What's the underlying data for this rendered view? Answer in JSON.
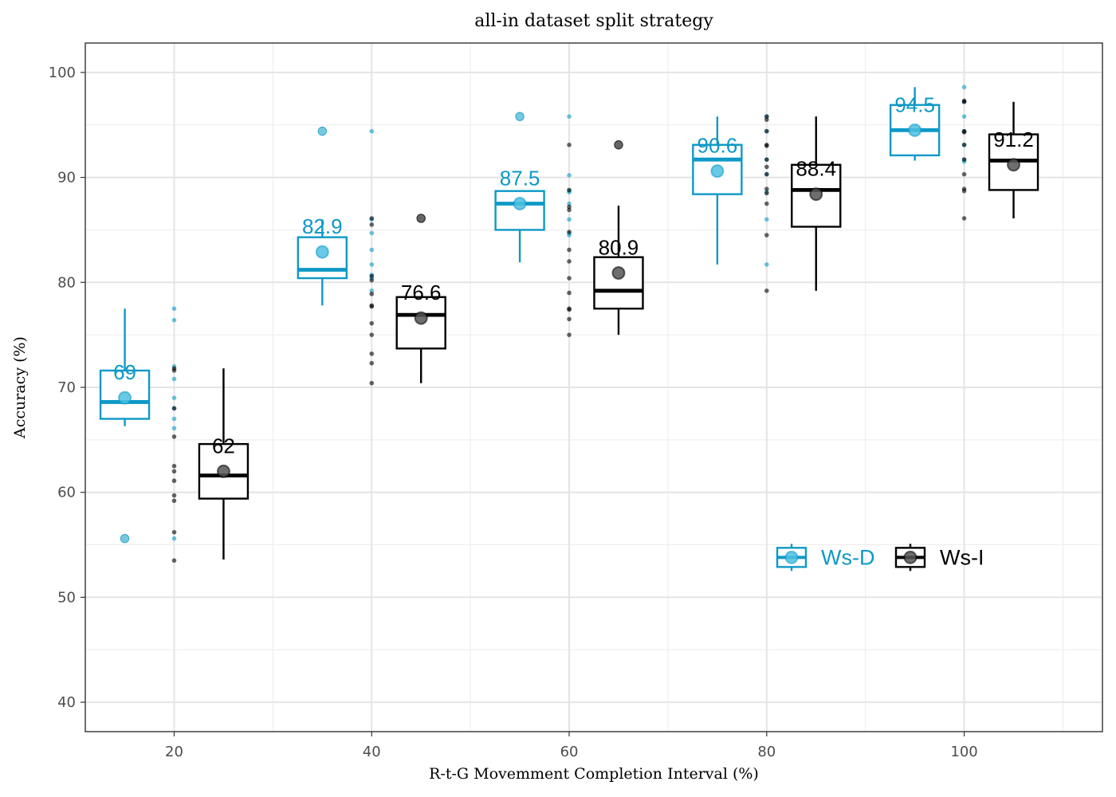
{
  "chart_data": {
    "type": "boxplot",
    "title": "all-in dataset split strategy",
    "xlabel": "R-t-G Movemment Completion Interval (%)",
    "ylabel": "Accuracy (%)",
    "xlim": [
      11,
      114
    ],
    "ylim": [
      37.2,
      102.8
    ],
    "x_ticks": [
      20,
      40,
      60,
      80,
      100
    ],
    "y_ticks": [
      40,
      50,
      60,
      70,
      80,
      90,
      100
    ],
    "grid": true,
    "legend_position": "inside-bottom-right",
    "series": [
      {
        "name": "Ws-D",
        "color": "#0d99c6",
        "boxes": [
          {
            "x": 15,
            "whisker_low": 66.3,
            "q1": 67.0,
            "median": 68.6,
            "q3": 71.6,
            "whisker_high": 77.5,
            "mean": 69.0,
            "mean_label": "69",
            "outliers": [
              55.6
            ]
          },
          {
            "x": 35,
            "whisker_low": 77.8,
            "q1": 80.4,
            "median": 81.2,
            "q3": 84.3,
            "whisker_high": 86.0,
            "mean": 82.9,
            "mean_label": "82.9",
            "outliers": [
              94.4
            ]
          },
          {
            "x": 55,
            "whisker_low": 81.9,
            "q1": 85.0,
            "median": 87.5,
            "q3": 88.7,
            "whisker_high": 88.7,
            "mean": 87.5,
            "mean_label": "87.5",
            "outliers": [
              95.8
            ]
          },
          {
            "x": 75,
            "whisker_low": 81.7,
            "q1": 88.4,
            "median": 91.7,
            "q3": 93.1,
            "whisker_high": 95.8,
            "mean": 90.6,
            "mean_label": "90.6",
            "outliers": []
          },
          {
            "x": 95,
            "whisker_low": 91.6,
            "q1": 92.1,
            "median": 94.5,
            "q3": 96.9,
            "whisker_high": 98.6,
            "mean": 94.5,
            "mean_label": "94.5",
            "outliers": []
          }
        ],
        "raw_points": [
          {
            "x": 20,
            "values": [
              77.5,
              76.4,
              72.0,
              70.8,
              69.0,
              68.0,
              67.0,
              66.1,
              55.6
            ]
          },
          {
            "x": 40,
            "values": [
              94.4,
              86.0,
              84.7,
              83.1,
              81.7,
              80.7,
              80.4,
              79.2
            ]
          },
          {
            "x": 60,
            "values": [
              95.8,
              90.2,
              88.7,
              88.6,
              87.5,
              86.0,
              84.7,
              84.5
            ]
          },
          {
            "x": 80,
            "values": [
              95.8,
              94.4,
              91.7,
              90.3,
              88.6,
              86.0,
              81.7
            ]
          },
          {
            "x": 100,
            "values": [
              98.6,
              97.2,
              95.8,
              94.4,
              93.1,
              91.7,
              91.5
            ]
          }
        ]
      },
      {
        "name": "Ws-I",
        "color": "#000000",
        "boxes": [
          {
            "x": 25,
            "whisker_low": 53.6,
            "q1": 59.4,
            "median": 61.6,
            "q3": 64.6,
            "whisker_high": 71.8,
            "mean": 62.0,
            "mean_label": "62",
            "outliers": []
          },
          {
            "x": 45,
            "whisker_low": 70.4,
            "q1": 73.7,
            "median": 76.9,
            "q3": 78.6,
            "whisker_high": 78.6,
            "mean": 76.6,
            "mean_label": "76.6",
            "outliers": [
              86.1
            ]
          },
          {
            "x": 65,
            "whisker_low": 75.0,
            "q1": 77.5,
            "median": 79.2,
            "q3": 82.4,
            "whisker_high": 87.3,
            "mean": 80.9,
            "mean_label": "80.9",
            "outliers": [
              93.1
            ]
          },
          {
            "x": 85,
            "whisker_low": 79.2,
            "q1": 85.3,
            "median": 88.8,
            "q3": 91.2,
            "whisker_high": 95.8,
            "mean": 88.4,
            "mean_label": "88.4",
            "outliers": []
          },
          {
            "x": 105,
            "whisker_low": 86.1,
            "q1": 88.8,
            "median": 91.6,
            "q3": 94.1,
            "whisker_high": 97.2,
            "mean": 91.2,
            "mean_label": "91.2",
            "outliers": []
          }
        ],
        "raw_points": [
          {
            "x": 20,
            "values": [
              71.8,
              71.6,
              68.0,
              65.3,
              62.5,
              62.0,
              61.1,
              59.7,
              59.2,
              56.2,
              53.5
            ]
          },
          {
            "x": 40,
            "values": [
              86.1,
              85.5,
              80.6,
              80.2,
              78.9,
              77.8,
              77.7,
              76.1,
              75.0,
              73.2,
              72.3,
              70.4
            ]
          },
          {
            "x": 60,
            "values": [
              93.1,
              88.8,
              87.2,
              86.9,
              84.8,
              83.1,
              82.0,
              80.4,
              79.0,
              77.5,
              77.4,
              76.5,
              75.0
            ]
          },
          {
            "x": 80,
            "values": [
              95.8,
              95.5,
              94.4,
              93.1,
              93.0,
              91.7,
              91.0,
              90.3,
              88.9,
              88.5,
              87.5,
              84.5,
              79.2
            ]
          },
          {
            "x": 100,
            "values": [
              97.2,
              97.3,
              94.4,
              94.3,
              93.1,
              91.7,
              90.3,
              88.9,
              88.7,
              86.1
            ]
          }
        ]
      }
    ]
  }
}
